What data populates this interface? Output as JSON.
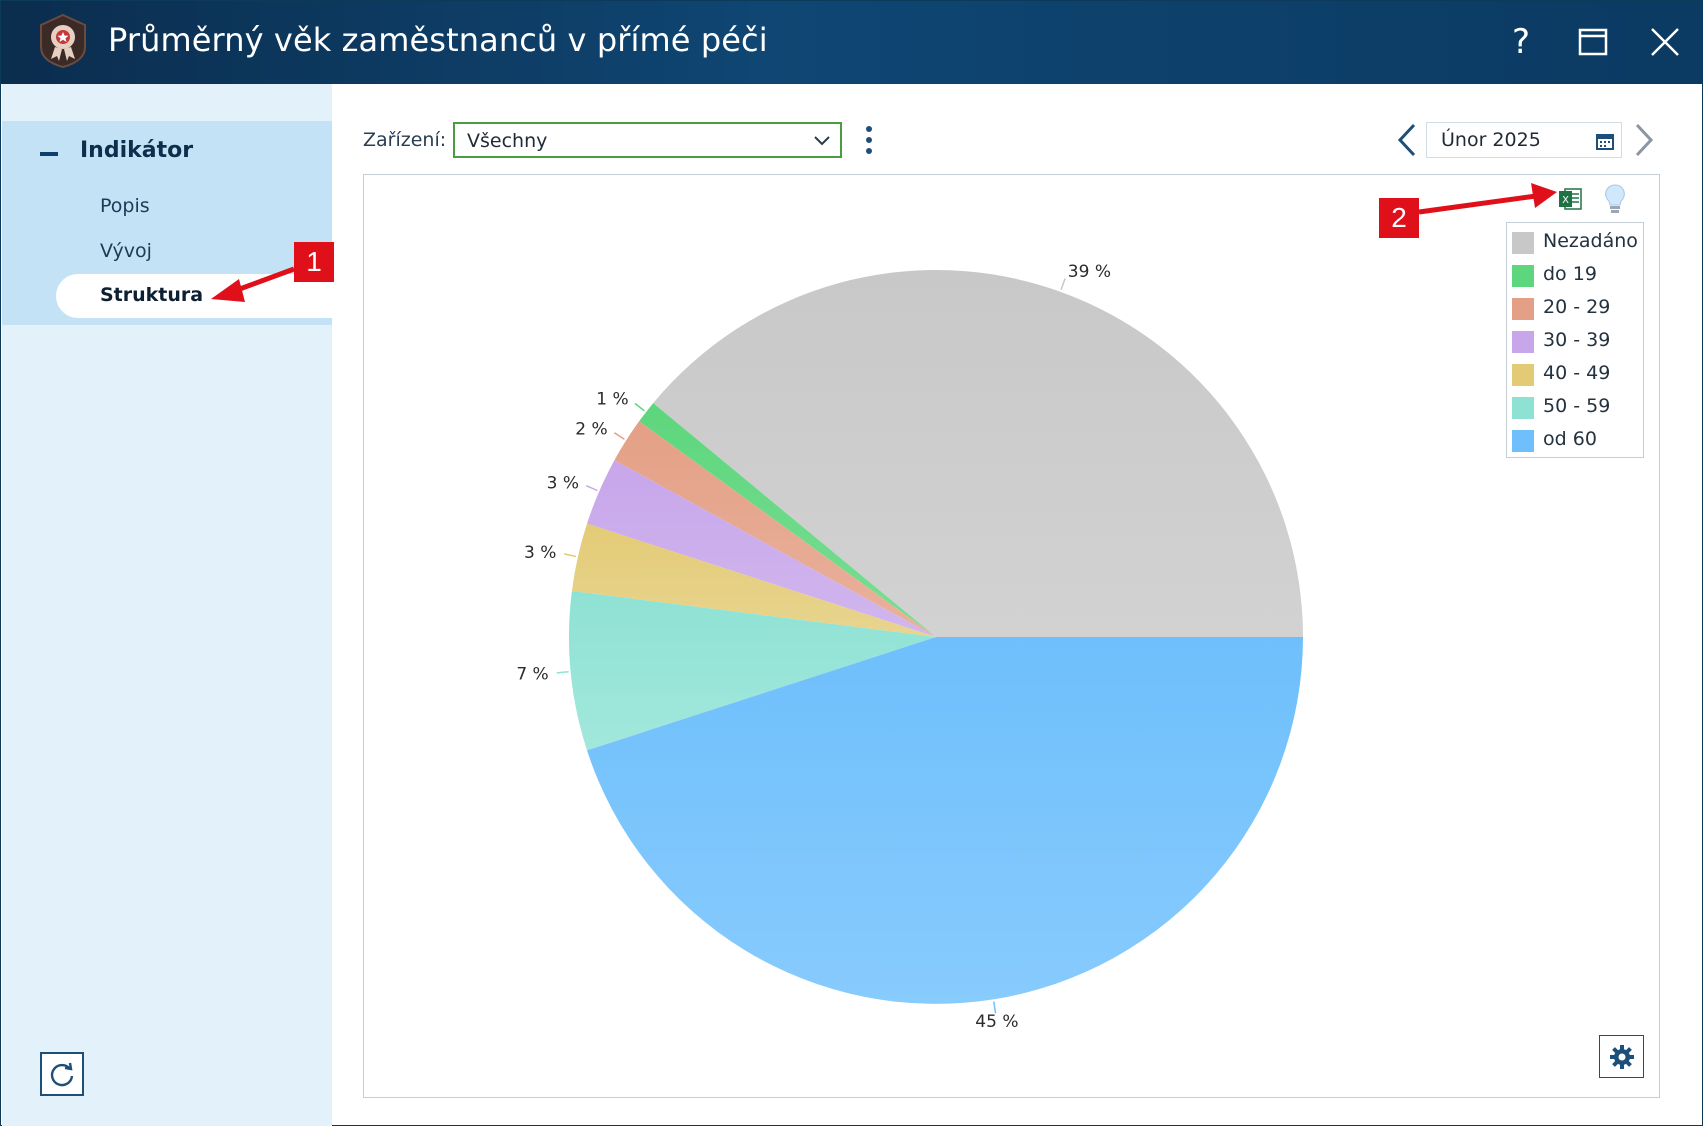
{
  "window": {
    "title": "Průměrný věk zaměstnanců v přímé péči",
    "help_label": "?"
  },
  "sidebar": {
    "section_label": "Indikátor",
    "items": [
      {
        "label": "Popis"
      },
      {
        "label": "Vývoj"
      },
      {
        "label": "Struktura",
        "active": true
      }
    ]
  },
  "filter": {
    "label": "Zařízení:",
    "value": "Všechny"
  },
  "period": {
    "value": "Únor 2025"
  },
  "callouts": [
    "1",
    "2"
  ],
  "icons": {
    "close": "close-icon",
    "maximize": "maximize-icon",
    "help": "help-icon",
    "refresh": "refresh-icon",
    "export": "excel-icon",
    "hint": "lightbulb-icon",
    "settings": "gear-icon",
    "calendar": "calendar-icon",
    "prev": "chevron-left-icon",
    "next": "chevron-right-icon",
    "more": "kebab-icon"
  },
  "colors": {
    "titlebar": "#0f4673",
    "sidebar": "#e3f1fa",
    "sidebar_active_section": "#c4e2f5",
    "select_border": "#4a9d3f",
    "callout": "#e0101a"
  },
  "chart_data": {
    "type": "pie",
    "slices": [
      {
        "name": "Nezadáno",
        "value": 39,
        "label": "39 %",
        "color": "#c8c8c8"
      },
      {
        "name": "do 19",
        "value": 1,
        "label": "1 %",
        "color": "#5dd67d"
      },
      {
        "name": "20 - 29",
        "value": 2,
        "label": "2 %",
        "color": "#e4a086"
      },
      {
        "name": "30 - 39",
        "value": 3,
        "label": "3 %",
        "color": "#c7a6ea"
      },
      {
        "name": "40 - 49",
        "value": 3,
        "label": "3 %",
        "color": "#e3cb76"
      },
      {
        "name": "50 - 59",
        "value": 7,
        "label": "7 %",
        "color": "#8ee2d4"
      },
      {
        "name": "od 60",
        "value": 45,
        "label": "45 %",
        "color": "#6ebffc"
      }
    ],
    "legend_position": "top-right"
  }
}
